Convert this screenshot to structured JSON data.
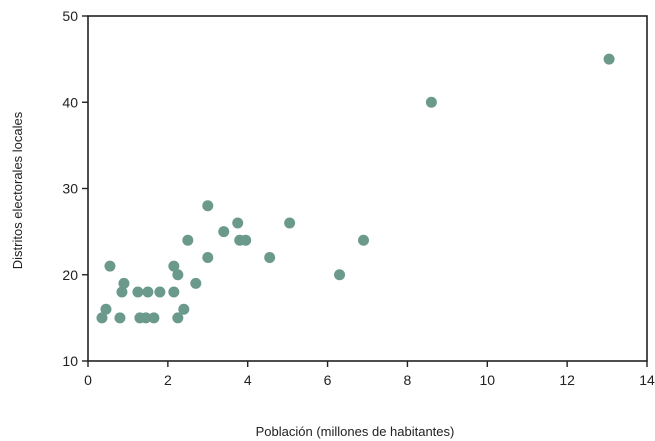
{
  "chart_data": {
    "type": "scatter",
    "title": "",
    "xlabel": "Población (millones de habitantes)",
    "ylabel": "Distritos electorales locales",
    "xlim": [
      0,
      14
    ],
    "ylim": [
      10,
      50
    ],
    "xticks": [
      0,
      2,
      4,
      6,
      8,
      10,
      12,
      14
    ],
    "yticks": [
      10,
      20,
      30,
      40,
      50
    ],
    "grid": false,
    "legend": "none",
    "colors": {
      "marker": "#6b9a8c",
      "axis": "#222222"
    },
    "series": [
      {
        "points": [
          [
            0.35,
            15
          ],
          [
            0.45,
            16
          ],
          [
            0.55,
            21
          ],
          [
            0.8,
            15
          ],
          [
            0.85,
            18
          ],
          [
            0.9,
            19
          ],
          [
            1.25,
            18
          ],
          [
            1.3,
            15
          ],
          [
            1.45,
            15
          ],
          [
            1.5,
            18
          ],
          [
            1.65,
            15
          ],
          [
            1.8,
            18
          ],
          [
            2.15,
            18
          ],
          [
            2.15,
            21
          ],
          [
            2.25,
            15
          ],
          [
            2.25,
            20
          ],
          [
            2.4,
            16
          ],
          [
            2.5,
            24
          ],
          [
            2.7,
            19
          ],
          [
            3.0,
            22
          ],
          [
            3.0,
            28
          ],
          [
            3.4,
            25
          ],
          [
            3.75,
            26
          ],
          [
            3.8,
            24
          ],
          [
            3.95,
            24
          ],
          [
            4.55,
            22
          ],
          [
            5.05,
            26
          ],
          [
            6.3,
            20
          ],
          [
            6.9,
            24
          ],
          [
            8.6,
            40
          ],
          [
            13.05,
            45
          ]
        ]
      }
    ]
  }
}
